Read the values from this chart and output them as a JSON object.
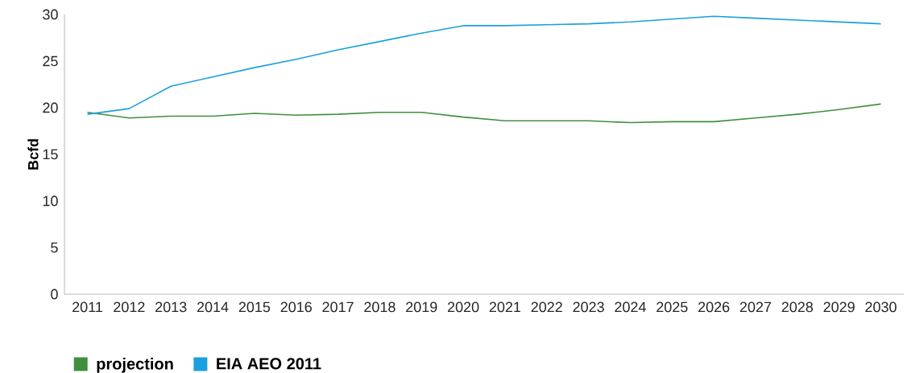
{
  "chart_data": {
    "type": "line",
    "ylabel": "Bcfd",
    "categories": [
      "2011",
      "2012",
      "2013",
      "2014",
      "2015",
      "2016",
      "2017",
      "2018",
      "2019",
      "2020",
      "2021",
      "2022",
      "2023",
      "2024",
      "2025",
      "2026",
      "2027",
      "2028",
      "2029",
      "2030"
    ],
    "series": [
      {
        "name": "**projection**",
        "color": "#3f8f3f",
        "values": [
          19.5,
          18.9,
          19.1,
          19.1,
          19.4,
          19.2,
          19.3,
          19.5,
          19.5,
          19.0,
          18.6,
          18.6,
          18.6,
          18.4,
          18.5,
          18.5,
          18.9,
          19.3,
          19.8,
          20.4
        ]
      },
      {
        "name": "**EIA AEO 2011**",
        "color": "#1aa0dc",
        "values": [
          19.3,
          19.9,
          22.3,
          23.3,
          24.3,
          25.2,
          26.2,
          27.1,
          28.0,
          28.8,
          28.8,
          28.9,
          29.0,
          29.2,
          29.5,
          29.8,
          29.6,
          29.4,
          29.2,
          29.0
        ]
      }
    ],
    "ylim": [
      0,
      30
    ],
    "yticks": [
      0,
      5,
      10,
      15,
      20,
      25,
      30
    ],
    "legend": "bottom left"
  }
}
